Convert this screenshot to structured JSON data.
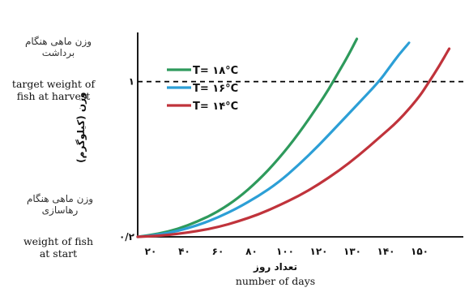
{
  "left_labels": {
    "target_fa_line1": "وزن ماهی هنگام",
    "target_fa_line2": "برداشت",
    "target_en_line1": "target weight of",
    "target_en_line2": "fish at harvest",
    "start_fa_line1": "وزن ماهی هنگام",
    "start_fa_line2": "رهاسازی",
    "start_en_line1": "weight of fish",
    "start_en_line2": "at start"
  },
  "chart_data": {
    "type": "line",
    "xlabel_fa": "تعداد روز",
    "xlabel_en": "number of days",
    "ylabel_fa": "وزن (کیلوگرم)",
    "x_ticks": [
      {
        "value": 20,
        "label": "۲۰"
      },
      {
        "value": 40,
        "label": "۴۰"
      },
      {
        "value": 60,
        "label": "۶۰"
      },
      {
        "value": 80,
        "label": "۸۰"
      },
      {
        "value": 100,
        "label": "۱۰۰"
      },
      {
        "value": 120,
        "label": "۱۲۰"
      },
      {
        "value": 130,
        "label": "۱۳۰"
      },
      {
        "value": 140,
        "label": "۱۴۰"
      },
      {
        "value": 150,
        "label": "۱۵۰"
      }
    ],
    "y_ticks": [
      {
        "value": 0.2,
        "label": "۰/۲"
      },
      {
        "value": 1,
        "label": "۱"
      }
    ],
    "reference_line": {
      "y": 1,
      "style": "dashed"
    },
    "series": [
      {
        "name": "T= ۱۸°C",
        "color": "#2e9a5c",
        "points": [
          [
            10,
            0.2
          ],
          [
            20,
            0.215
          ],
          [
            30,
            0.24
          ],
          [
            40,
            0.28
          ],
          [
            50,
            0.33
          ],
          [
            60,
            0.4
          ],
          [
            70,
            0.49
          ],
          [
            80,
            0.6
          ],
          [
            90,
            0.73
          ],
          [
            100,
            0.88
          ],
          [
            105,
            0.96
          ],
          [
            110,
            1.05
          ],
          [
            115,
            1.14
          ],
          [
            119,
            1.22
          ]
        ]
      },
      {
        "name": "T= ۱۶°C",
        "color": "#2c9fd6",
        "points": [
          [
            10,
            0.2
          ],
          [
            20,
            0.21
          ],
          [
            30,
            0.23
          ],
          [
            40,
            0.26
          ],
          [
            50,
            0.3
          ],
          [
            60,
            0.35
          ],
          [
            70,
            0.41
          ],
          [
            80,
            0.48
          ],
          [
            90,
            0.57
          ],
          [
            100,
            0.67
          ],
          [
            110,
            0.78
          ],
          [
            120,
            0.89
          ],
          [
            130,
            1.0
          ],
          [
            135,
            1.07
          ],
          [
            140,
            1.14
          ],
          [
            145,
            1.2
          ]
        ]
      },
      {
        "name": "T= ۱۴°C",
        "color": "#c0333b",
        "points": [
          [
            10,
            0.2
          ],
          [
            20,
            0.205
          ],
          [
            30,
            0.215
          ],
          [
            40,
            0.23
          ],
          [
            50,
            0.25
          ],
          [
            60,
            0.28
          ],
          [
            70,
            0.315
          ],
          [
            80,
            0.36
          ],
          [
            90,
            0.41
          ],
          [
            100,
            0.47
          ],
          [
            110,
            0.54
          ],
          [
            120,
            0.62
          ],
          [
            130,
            0.71
          ],
          [
            140,
            0.8
          ],
          [
            150,
            0.92
          ],
          [
            155,
            1.0
          ],
          [
            160,
            1.08
          ],
          [
            165,
            1.17
          ]
        ]
      }
    ],
    "xlim": [
      10,
      172
    ],
    "ylim": [
      0.2,
      1.22
    ],
    "legend": "upper-left"
  }
}
